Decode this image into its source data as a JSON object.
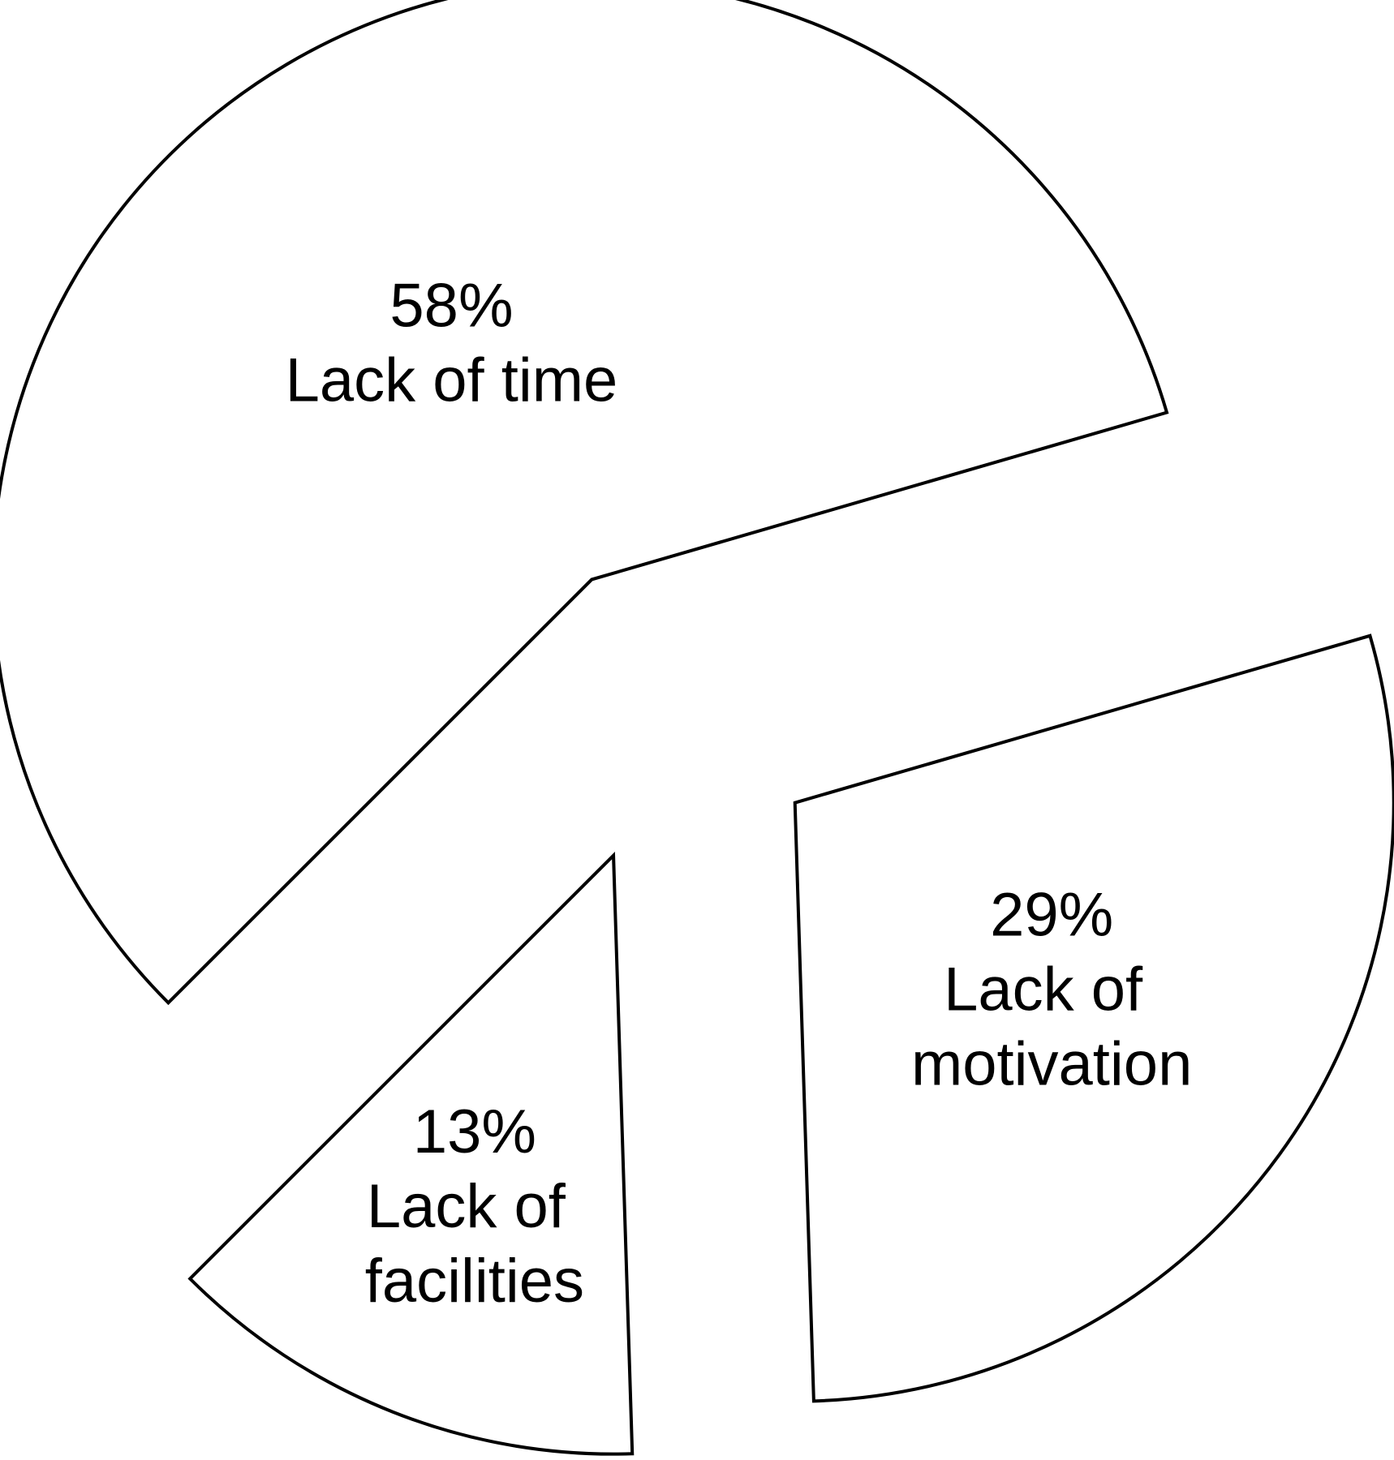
{
  "chart_data": {
    "type": "pie",
    "categories": [
      "Lack of time",
      "Lack of motivation",
      "Lack of facilities"
    ],
    "values": [
      58,
      29,
      13
    ],
    "value_labels": [
      "58%",
      "29%",
      "13%"
    ],
    "color": "#ffffff",
    "exploded": true
  }
}
